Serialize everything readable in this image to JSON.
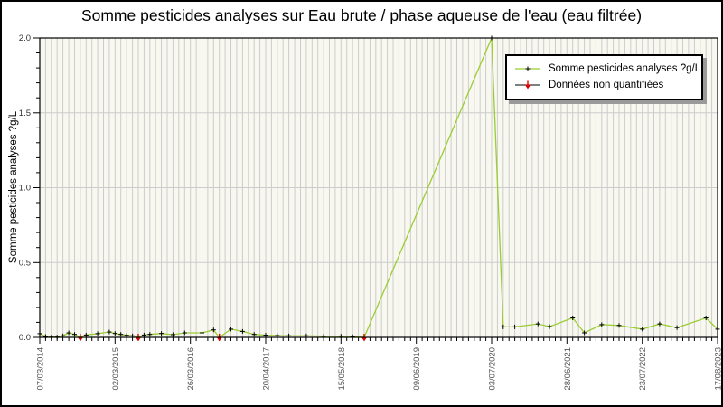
{
  "figure": {
    "title": "Somme pesticides analyses sur Eau brute / phase aqueuse de l'eau (eau filtrée)"
  },
  "chart_data": {
    "type": "line",
    "title": "Somme pesticides analyses sur Eau brute / phase aqueuse de l'eau (eau filtrée)",
    "xlabel": "",
    "ylabel": "Somme pesticides analyses ?g/L",
    "ylim": [
      0,
      2.0
    ],
    "y_major_ticks": [
      "0.0",
      "0.5",
      "1.0",
      "1.5",
      "2.0"
    ],
    "y_minor_step": 0.1,
    "grid": true,
    "legend_position": "top-right",
    "x_point_count": 118,
    "x_major_tick_indices": [
      0,
      13,
      26,
      39,
      52,
      65,
      78,
      91,
      104,
      117
    ],
    "x_major_tick_labels": [
      "07/03/2014",
      "02/03/2015",
      "26/03/2016",
      "20/04/2017",
      "15/05/2018",
      "09/06/2019",
      "03/07/2020",
      "28/06/2021",
      "23/07/2022",
      "17/08/2023"
    ],
    "colors": {
      "line": "#9acd32",
      "marker": "#000000",
      "non_quantified": "#dd0000",
      "plot_bg": "#f8f8f0",
      "gridline": "#cccccc",
      "tick_label": "#555555"
    },
    "series": [
      {
        "name": "Somme pesticides analyses ?g/L",
        "marker": "plus",
        "points": [
          [
            0,
            0.025
          ],
          [
            1,
            0.006
          ],
          [
            2,
            0.002
          ],
          [
            3,
            0.002
          ],
          [
            4,
            0.01
          ],
          [
            5,
            0.03
          ],
          [
            6,
            0.02
          ],
          [
            8,
            0.016
          ],
          [
            10,
            0.025
          ],
          [
            12,
            0.036
          ],
          [
            13,
            0.026
          ],
          [
            14,
            0.02
          ],
          [
            15,
            0.014
          ],
          [
            16,
            0.01
          ],
          [
            18,
            0.016
          ],
          [
            19,
            0.02
          ],
          [
            21,
            0.026
          ],
          [
            23,
            0.018
          ],
          [
            25,
            0.03
          ],
          [
            28,
            0.03
          ],
          [
            30,
            0.05
          ],
          [
            33,
            0.055
          ],
          [
            35,
            0.04
          ],
          [
            37,
            0.02
          ],
          [
            39,
            0.015
          ],
          [
            41,
            0.012
          ],
          [
            43,
            0.01
          ],
          [
            46,
            0.01
          ],
          [
            49,
            0.008
          ],
          [
            52,
            0.008
          ],
          [
            54,
            0.005
          ],
          [
            78,
            2.0
          ],
          [
            80,
            0.07
          ],
          [
            82,
            0.07
          ],
          [
            86,
            0.09
          ],
          [
            88,
            0.072
          ],
          [
            92,
            0.13
          ],
          [
            94,
            0.03
          ],
          [
            97,
            0.085
          ],
          [
            100,
            0.08
          ],
          [
            104,
            0.055
          ],
          [
            107,
            0.09
          ],
          [
            110,
            0.065
          ],
          [
            115,
            0.13
          ],
          [
            117,
            0.055
          ]
        ]
      },
      {
        "name": "Données non quantifiées",
        "marker": "caret-down",
        "points": [
          [
            7,
            0
          ],
          [
            17,
            0
          ],
          [
            31,
            0
          ],
          [
            56,
            0
          ]
        ]
      }
    ]
  }
}
